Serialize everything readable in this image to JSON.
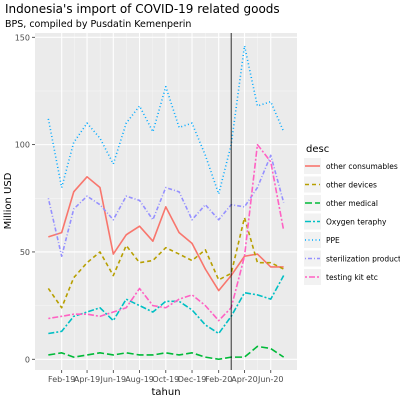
{
  "chart_data": {
    "type": "line",
    "title": "Indonesia's import of COVID-19 related goods",
    "subtitle": "BPS, compiled by Pusdatin Kemenperin",
    "xlabel": "tahun",
    "ylabel": "Million USD",
    "ylim": [
      -5,
      152
    ],
    "xlim": [
      "2018-12-01",
      "2020-08-01"
    ],
    "x_ticks": [
      "2019-02-01",
      "2019-04-01",
      "2019-06-01",
      "2019-08-01",
      "2019-10-01",
      "2019-12-01",
      "2020-02-01",
      "2020-04-01",
      "2020-06-01"
    ],
    "x_tick_labels": [
      "Feb-19",
      "Apr-19",
      "Jun-19",
      "Aug-19",
      "Oct-19",
      "Dec-19",
      "Feb-20",
      "Apr-20",
      "Jun-20"
    ],
    "y_ticks": [
      0,
      50,
      100,
      150
    ],
    "y_tick_labels": [
      "0",
      "50",
      "100",
      "150"
    ],
    "grid": true,
    "legend_position": "right",
    "legend_title": "desc",
    "vline_x": "2020-03-01",
    "x": [
      "2019-01-01",
      "2019-02-01",
      "2019-03-01",
      "2019-04-01",
      "2019-05-01",
      "2019-06-01",
      "2019-07-01",
      "2019-08-01",
      "2019-09-01",
      "2019-10-01",
      "2019-11-01",
      "2019-12-01",
      "2020-01-01",
      "2020-02-01",
      "2020-03-01",
      "2020-04-01",
      "2020-05-01",
      "2020-06-01",
      "2020-07-01"
    ],
    "series": [
      {
        "name": "other consumables",
        "color": "#F8766D",
        "dash": "solid",
        "values": [
          57,
          59,
          78,
          85,
          80,
          49,
          58,
          62,
          55,
          71,
          59,
          54,
          42,
          32,
          39,
          48,
          49,
          43,
          43
        ]
      },
      {
        "name": "other devices",
        "color": "#B79F00",
        "dash": "dashed",
        "values": [
          33,
          24,
          38,
          45,
          50,
          39,
          53,
          45,
          46,
          52,
          49,
          46,
          51,
          37,
          40,
          66,
          45,
          45,
          42
        ]
      },
      {
        "name": "other medical",
        "color": "#00BA38",
        "dash": "longdash",
        "values": [
          2,
          3,
          1,
          2,
          3,
          2,
          3,
          2,
          2,
          3,
          2,
          3,
          1,
          0,
          1,
          1,
          6,
          5,
          1
        ]
      },
      {
        "name": "Oxygen teraphy",
        "color": "#00BFC4",
        "dash": "dashlong",
        "values": [
          12,
          13,
          20,
          22,
          24,
          18,
          28,
          25,
          22,
          27,
          27,
          23,
          16,
          12,
          20,
          31,
          30,
          28,
          39
        ]
      },
      {
        "name": "PPE",
        "color": "#00A9FF",
        "dash": "dotted",
        "values": [
          112,
          80,
          101,
          110,
          103,
          91,
          110,
          118,
          106,
          127,
          108,
          110,
          95,
          77,
          100,
          146,
          118,
          120,
          106
        ]
      },
      {
        "name": "sterilization product",
        "color": "#9590FF",
        "dash": "dotdash",
        "values": [
          75,
          48,
          70,
          76,
          72,
          65,
          76,
          74,
          65,
          80,
          78,
          65,
          72,
          65,
          72,
          71,
          80,
          95,
          73
        ]
      },
      {
        "name": "testing kit etc",
        "color": "#FF61C3",
        "dash": "twodash",
        "values": [
          19,
          20,
          21,
          21,
          20,
          22,
          24,
          33,
          25,
          24,
          28,
          30,
          25,
          18,
          24,
          48,
          100,
          92,
          60
        ]
      }
    ]
  }
}
